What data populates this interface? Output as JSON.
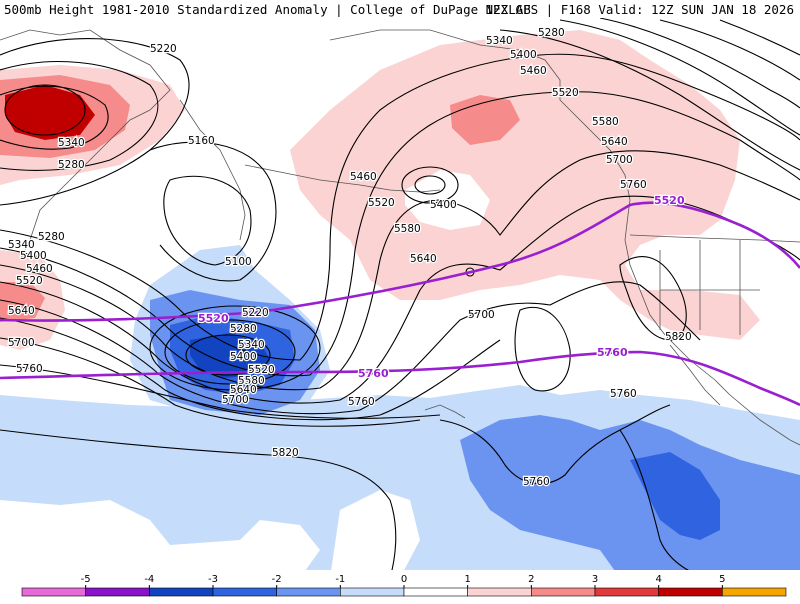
{
  "header": {
    "left": "500mb Height 1981-2010 Standardized Anomaly | College of DuPage NEXLAB",
    "right": "12Z GFS | F168 Valid: 12Z SUN JAN 18 2026"
  },
  "legend": {
    "ticks": [
      "-5",
      "-4",
      "-3",
      "-2",
      "-1",
      "0",
      "1",
      "2",
      "3",
      "4",
      "5"
    ],
    "colors": [
      "#e66ad8",
      "#8a12c8",
      "#1244c2",
      "#2f63df",
      "#6b93f0",
      "#c5dcfb",
      "#ffffff",
      "#fbd3d3",
      "#f58b8b",
      "#e23a3a",
      "#c00000",
      "#f5a500"
    ]
  },
  "colors": {
    "highlight_contour": "#9a1fd0",
    "contour": "#000000",
    "coast": "#555555"
  },
  "contour_labels": {
    "l5220_nw": "5220",
    "l5160": "5160",
    "l5340_nw": "5340",
    "l5280_nw": "5280",
    "l5340_w": "5340",
    "l5400_w": "5400",
    "l5460_w": "5460",
    "l5520_w": "5520",
    "l5640_w": "5640",
    "l5700_w": "5700",
    "l5760_w": "5760",
    "l5280_w": "5280",
    "l5100": "5100",
    "l5220_c": "5220",
    "l5280_c": "5280",
    "l5340_c": "5340",
    "l5400_c": "5400",
    "l5520_c": "5520",
    "l5580_c": "5580",
    "l5640_c": "5640",
    "l5700_c": "5700",
    "l5760_c": "5760",
    "l5820_s": "5820",
    "l5760_s": "5760",
    "l5460_n": "5460",
    "l5520_n": "5520",
    "l5580_n": "5580",
    "l5640_n": "5640",
    "l5400_n": "5400",
    "l5700_n": "5700",
    "l5340_ne": "5340",
    "l5400_ne": "5400",
    "l5460_ne": "5460",
    "l5280_ne": "5280",
    "l5520_ne": "5520",
    "l5580_ne": "5580",
    "l5640_ne": "5640",
    "l5700_ne": "5700",
    "l5760_ne": "5760",
    "l5820_e": "5820",
    "l5760_se": "5760",
    "l5760_sb": "5760"
  },
  "highlight_labels": {
    "h5520_w": "5520",
    "h5760_c": "5760",
    "h5520_ne": "5520",
    "h5760_e": "5760"
  }
}
